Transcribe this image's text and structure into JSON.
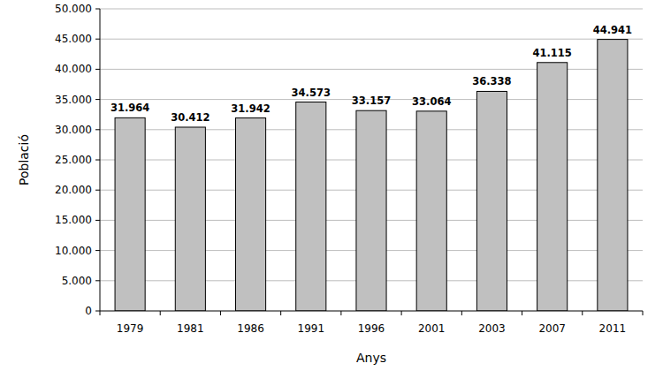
{
  "chart_data": {
    "type": "bar",
    "categories": [
      "1979",
      "1981",
      "1986",
      "1991",
      "1996",
      "2001",
      "2003",
      "2007",
      "2011"
    ],
    "values": [
      31964,
      30412,
      31942,
      34573,
      33157,
      33064,
      36338,
      41115,
      44941
    ],
    "value_labels": [
      "31.964",
      "30.412",
      "31.942",
      "34.573",
      "33.157",
      "33.064",
      "36.338",
      "41.115",
      "44.941"
    ],
    "color": "#c0c0c0",
    "data_labels": true,
    "x_label": "Anys",
    "y_label": "Població",
    "ylim": [
      0,
      50000
    ],
    "yticks": [
      0,
      {
        "value": 5000,
        "label": "5.000"
      },
      {
        "value": 10000,
        "label": "10.000"
      },
      {
        "value": 15000,
        "label": "15.000"
      },
      {
        "value": 20000,
        "label": "20.000"
      },
      {
        "value": 25000,
        "label": "25.000"
      },
      {
        "value": 30000,
        "label": "30.000"
      },
      {
        "value": 35000,
        "label": "35.000"
      },
      {
        "value": 40000,
        "label": "40.000"
      },
      {
        "value": 45000,
        "label": "45.000"
      },
      {
        "value": 50000,
        "label": "50.000"
      }
    ],
    "grid": true
  }
}
